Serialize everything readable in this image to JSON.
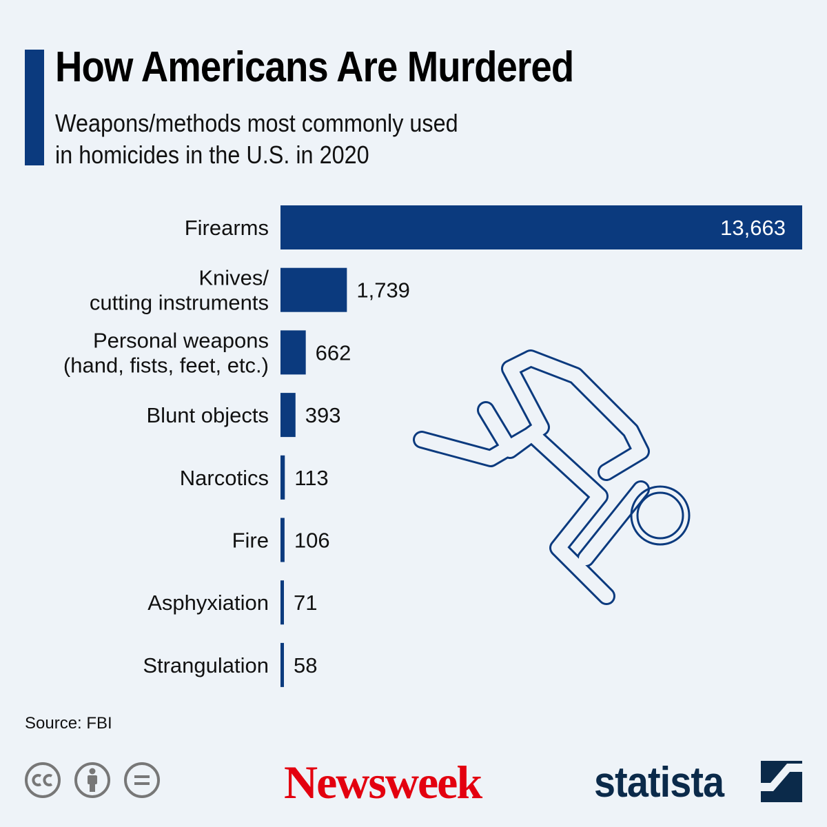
{
  "header": {
    "title": "How Americans Are Murdered",
    "subtitle_line1": "Weapons/methods most commonly used",
    "subtitle_line2": "in homicides in the U.S. in 2020"
  },
  "chart_data": {
    "type": "bar",
    "orientation": "horizontal",
    "title": "How Americans Are Murdered",
    "categories": [
      [
        "Firearms"
      ],
      [
        "Knives/",
        "cutting instruments"
      ],
      [
        "Personal weapons",
        "(hand, fists, feet, etc.)"
      ],
      [
        "Blunt objects"
      ],
      [
        "Narcotics"
      ],
      [
        "Fire"
      ],
      [
        "Asphyxiation"
      ],
      [
        "Strangulation"
      ]
    ],
    "values": [
      13663,
      1739,
      662,
      393,
      113,
      106,
      71,
      58
    ],
    "value_labels": [
      "13,663",
      "1,739",
      "662",
      "393",
      "113",
      "106",
      "71",
      "58"
    ],
    "xlim": [
      0,
      13663
    ],
    "bar_color": "#0b3a7e",
    "grid": false,
    "legend": "none"
  },
  "footer": {
    "source": "Source: FBI",
    "brand_newsweek": "Newsweek",
    "brand_statista": "statista"
  },
  "colors": {
    "accent": "#0b3a7e",
    "background": "#eef3f8",
    "newsweek_red": "#e3000f",
    "statista_navy": "#0b2a4a"
  },
  "icons": [
    "cc-icon",
    "attribution-icon",
    "no-derivatives-icon",
    "statista-logo-icon",
    "chalk-outline-figure-icon"
  ]
}
